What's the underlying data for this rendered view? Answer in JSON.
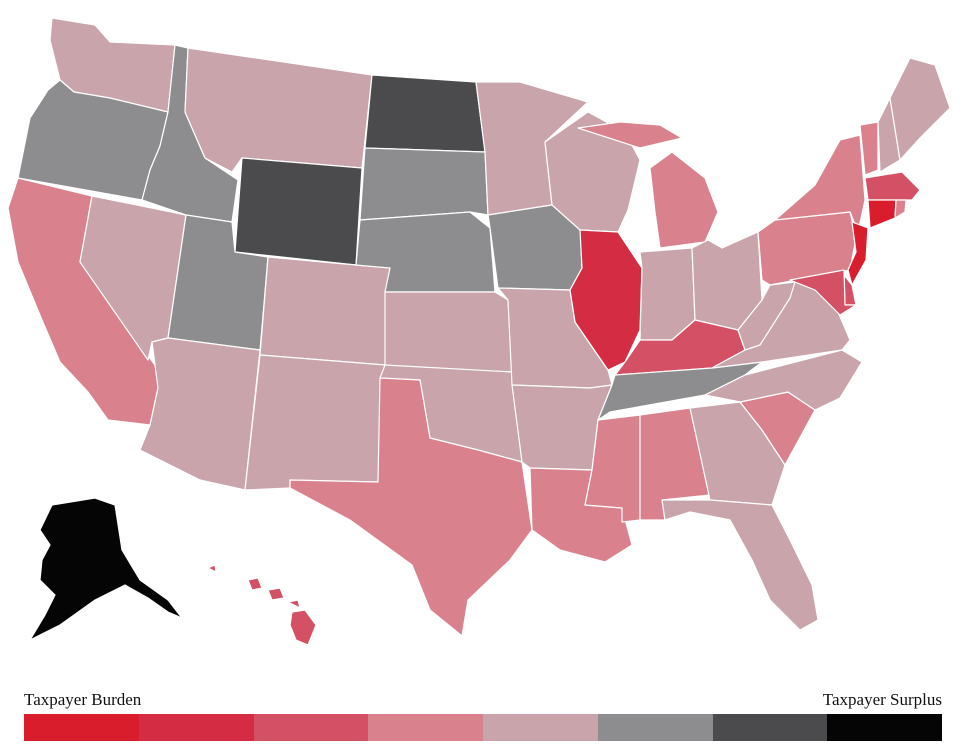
{
  "legend": {
    "left_label": "Taxpayer Burden",
    "right_label": "Taxpayer Surplus",
    "swatches": [
      {
        "id": "c1",
        "color": "#d91d2d"
      },
      {
        "id": "c2",
        "color": "#d42c42"
      },
      {
        "id": "c3",
        "color": "#d45064"
      },
      {
        "id": "c4",
        "color": "#d9828d"
      },
      {
        "id": "c5",
        "color": "#c9a4ab"
      },
      {
        "id": "c6",
        "color": "#8d8d8f"
      },
      {
        "id": "c7",
        "color": "#4b4b4d"
      },
      {
        "id": "c8",
        "color": "#050505"
      }
    ]
  },
  "states": {
    "WA": "c5",
    "OR": "c6",
    "CA": "c4",
    "NV": "c5",
    "ID": "c6",
    "MT": "c5",
    "WY": "c7",
    "UT": "c6",
    "AZ": "c5",
    "CO": "c5",
    "NM": "c5",
    "ND": "c7",
    "SD": "c6",
    "NE": "c6",
    "KS": "c5",
    "OK": "c5",
    "TX": "c4",
    "MN": "c5",
    "IA": "c6",
    "MO": "c5",
    "AR": "c5",
    "LA": "c4",
    "WI": "c5",
    "IL": "c2",
    "MI": "c4",
    "IN": "c5",
    "OH": "c5",
    "KY": "c3",
    "TN": "c6",
    "MS": "c4",
    "AL": "c4",
    "GA": "c5",
    "FL": "c5",
    "SC": "c4",
    "NC": "c5",
    "VA": "c5",
    "WV": "c5",
    "PA": "c4",
    "NY": "c4",
    "VT": "c4",
    "NH": "c5",
    "ME": "c5",
    "MA": "c3",
    "RI": "c4",
    "CT": "c1",
    "NJ": "c1",
    "DE": "c3",
    "MD": "c3",
    "AK": "c8",
    "HI": "c3"
  }
}
